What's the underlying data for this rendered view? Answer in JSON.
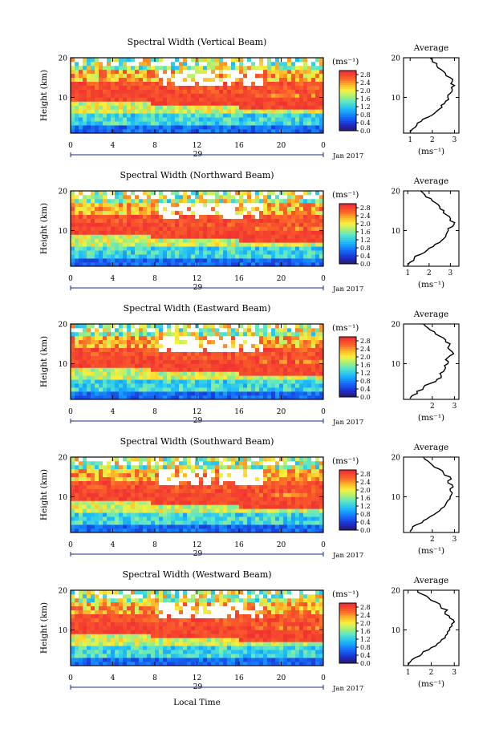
{
  "figure": {
    "date_label": "Jan 2017",
    "day_label": "29",
    "x_axis_label": "Local Time",
    "y_axis_label": "Height (km)",
    "colorbar_unit": "(ms⁻¹)",
    "average_title": "Average",
    "average_xlabel": "(ms⁻¹)"
  },
  "chart_data": [
    {
      "type": "heatmap",
      "title": "Spectral Width (Vertical Beam)",
      "ylabel": "Height (km)",
      "x_ticks": [
        "0",
        "4",
        "8",
        "12",
        "16",
        "20",
        "0"
      ],
      "y_ticks": [
        "10",
        "20"
      ],
      "xlim": [
        0,
        24
      ],
      "ylim": [
        1,
        20
      ],
      "colorbar_ticks": [
        "0.0",
        "0.4",
        "0.8",
        "1.2",
        "1.6",
        "2.0",
        "2.4",
        "2.8"
      ],
      "colorbar_range": [
        0,
        3
      ],
      "average": {
        "xlim": [
          0.7,
          3.2
        ],
        "ylim": [
          1,
          20
        ],
        "x_ticks": [
          "1",
          "2",
          "3"
        ],
        "y_ticks": [
          "10",
          "20"
        ],
        "profile": [
          [
            1,
            1.2
          ],
          [
            1.1,
            2
          ],
          [
            1.3,
            3
          ],
          [
            1.5,
            4
          ],
          [
            1.8,
            5
          ],
          [
            2.1,
            6
          ],
          [
            2.3,
            7
          ],
          [
            2.4,
            8
          ],
          [
            2.6,
            9
          ],
          [
            2.7,
            10
          ],
          [
            2.8,
            11
          ],
          [
            2.9,
            12
          ],
          [
            3.0,
            13
          ],
          [
            2.9,
            14
          ],
          [
            2.8,
            15
          ],
          [
            2.6,
            16
          ],
          [
            2.4,
            17
          ],
          [
            2.2,
            18
          ],
          [
            2.0,
            19
          ],
          [
            1.9,
            20
          ]
        ]
      }
    },
    {
      "type": "heatmap",
      "title": "Spectral Width (Northward Beam)",
      "ylabel": "Height (km)",
      "x_ticks": [
        "0",
        "4",
        "8",
        "12",
        "16",
        "20",
        "0"
      ],
      "y_ticks": [
        "10",
        "20"
      ],
      "xlim": [
        0,
        24
      ],
      "ylim": [
        1,
        20
      ],
      "colorbar_ticks": [
        "0.0",
        "0.4",
        "0.8",
        "1.2",
        "1.6",
        "2.0",
        "2.4",
        "2.8"
      ],
      "colorbar_range": [
        0,
        3
      ],
      "average": {
        "xlim": [
          0.8,
          3.4
        ],
        "ylim": [
          1,
          20
        ],
        "x_ticks": [
          "1",
          "2",
          "3"
        ],
        "y_ticks": [
          "10",
          "20"
        ],
        "profile": [
          [
            1,
            1.2
          ],
          [
            1.1,
            2
          ],
          [
            1.3,
            3
          ],
          [
            1.6,
            4
          ],
          [
            1.9,
            5
          ],
          [
            2.2,
            6
          ],
          [
            2.5,
            7
          ],
          [
            2.7,
            8
          ],
          [
            2.8,
            9
          ],
          [
            2.9,
            10
          ],
          [
            3.1,
            11
          ],
          [
            3.2,
            12
          ],
          [
            3.0,
            13
          ],
          [
            2.8,
            14
          ],
          [
            2.7,
            15
          ],
          [
            2.5,
            16
          ],
          [
            2.3,
            17
          ],
          [
            2.1,
            18
          ],
          [
            1.8,
            19
          ],
          [
            1.6,
            20
          ]
        ]
      }
    },
    {
      "type": "heatmap",
      "title": "Spectral Width (Eastward Beam)",
      "ylabel": "Height (km)",
      "x_ticks": [
        "0",
        "4",
        "8",
        "12",
        "16",
        "20",
        "0"
      ],
      "y_ticks": [
        "10",
        "20"
      ],
      "xlim": [
        0,
        24
      ],
      "ylim": [
        1,
        20
      ],
      "colorbar_ticks": [
        "0.0",
        "0.4",
        "0.8",
        "1.2",
        "1.6",
        "2.0",
        "2.4",
        "2.8"
      ],
      "colorbar_range": [
        0,
        3
      ],
      "average": {
        "xlim": [
          0.7,
          3.2
        ],
        "ylim": [
          1,
          20
        ],
        "x_ticks": [
          "2",
          "3"
        ],
        "y_ticks": [
          "10",
          "20"
        ],
        "profile": [
          [
            1,
            1.2
          ],
          [
            1.1,
            2
          ],
          [
            1.3,
            3
          ],
          [
            1.6,
            4
          ],
          [
            1.9,
            5
          ],
          [
            2.2,
            6
          ],
          [
            2.4,
            7
          ],
          [
            2.5,
            8
          ],
          [
            2.6,
            9
          ],
          [
            2.7,
            10
          ],
          [
            2.6,
            11
          ],
          [
            2.8,
            12
          ],
          [
            2.9,
            13
          ],
          [
            2.7,
            14
          ],
          [
            2.8,
            15
          ],
          [
            2.6,
            16
          ],
          [
            2.3,
            17
          ],
          [
            2.1,
            18
          ],
          [
            1.8,
            19
          ],
          [
            1.6,
            20
          ]
        ]
      }
    },
    {
      "type": "heatmap",
      "title": "Spectral Width (Southward Beam)",
      "ylabel": "Height (km)",
      "x_ticks": [
        "0",
        "4",
        "8",
        "12",
        "16",
        "20",
        "0"
      ],
      "y_ticks": [
        "10",
        "20"
      ],
      "xlim": [
        0,
        24
      ],
      "ylim": [
        1,
        20
      ],
      "colorbar_ticks": [
        "0.0",
        "0.4",
        "0.8",
        "1.2",
        "1.6",
        "2.0",
        "2.4",
        "2.8"
      ],
      "colorbar_range": [
        0,
        3
      ],
      "average": {
        "xlim": [
          0.7,
          3.2
        ],
        "ylim": [
          1,
          20
        ],
        "x_ticks": [
          "2",
          "3"
        ],
        "y_ticks": [
          "10",
          "20"
        ],
        "profile": [
          [
            1,
            1.2
          ],
          [
            1.1,
            2
          ],
          [
            1.3,
            3
          ],
          [
            1.6,
            4
          ],
          [
            1.9,
            5
          ],
          [
            2.2,
            6
          ],
          [
            2.4,
            7
          ],
          [
            2.6,
            8
          ],
          [
            2.7,
            9
          ],
          [
            2.8,
            10
          ],
          [
            2.9,
            11
          ],
          [
            2.8,
            12
          ],
          [
            2.9,
            13
          ],
          [
            2.7,
            14
          ],
          [
            2.8,
            15
          ],
          [
            2.5,
            16
          ],
          [
            2.3,
            17
          ],
          [
            2.0,
            18
          ],
          [
            1.8,
            19
          ],
          [
            1.6,
            20
          ]
        ]
      }
    },
    {
      "type": "heatmap",
      "title": "Spectral Width (Westward Beam)",
      "ylabel": "Height (km)",
      "x_ticks": [
        "0",
        "4",
        "8",
        "12",
        "16",
        "20",
        "0"
      ],
      "y_ticks": [
        "10",
        "20"
      ],
      "xlim": [
        0,
        24
      ],
      "ylim": [
        1,
        20
      ],
      "colorbar_ticks": [
        "0.0",
        "0.4",
        "0.8",
        "1.2",
        "1.6",
        "2.0",
        "2.4",
        "2.8"
      ],
      "colorbar_range": [
        0,
        3
      ],
      "average": {
        "xlim": [
          0.8,
          3.2
        ],
        "ylim": [
          1,
          20
        ],
        "x_ticks": [
          "1",
          "2",
          "3"
        ],
        "y_ticks": [
          "10",
          "20"
        ],
        "profile": [
          [
            1,
            1.2
          ],
          [
            1.1,
            2
          ],
          [
            1.3,
            3
          ],
          [
            1.6,
            4
          ],
          [
            1.9,
            5
          ],
          [
            2.2,
            6
          ],
          [
            2.4,
            7
          ],
          [
            2.6,
            8
          ],
          [
            2.7,
            9
          ],
          [
            2.8,
            10
          ],
          [
            2.9,
            11
          ],
          [
            3.0,
            12
          ],
          [
            2.8,
            13
          ],
          [
            2.6,
            14
          ],
          [
            2.7,
            15
          ],
          [
            2.4,
            16
          ],
          [
            2.2,
            17
          ],
          [
            1.9,
            18
          ],
          [
            1.6,
            19
          ],
          [
            1.4,
            20
          ]
        ]
      }
    }
  ]
}
